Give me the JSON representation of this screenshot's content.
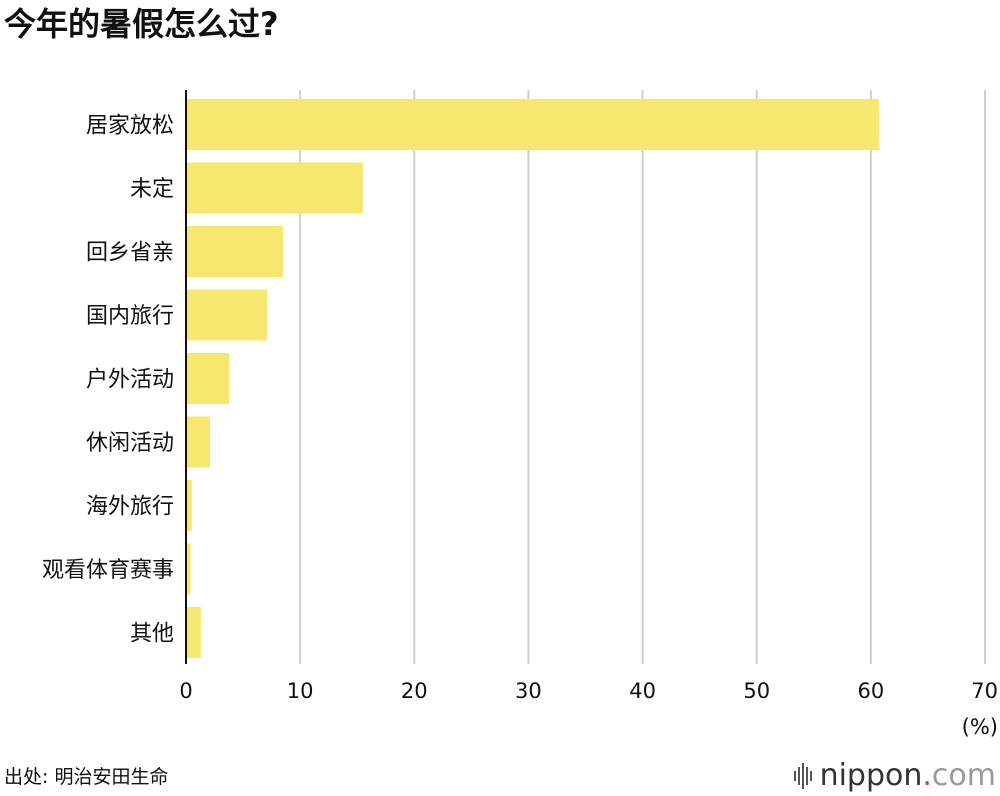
{
  "chart_data": {
    "type": "bar",
    "orientation": "horizontal",
    "title": "今年的暑假怎么过?",
    "categories": [
      "居家放松",
      "未定",
      "回乡省亲",
      "国内旅行",
      "户外活动",
      "休闲活动",
      "海外旅行",
      "观看体育赛事",
      "其他"
    ],
    "values": [
      60.7,
      15.5,
      8.5,
      7.1,
      3.8,
      2.1,
      0.5,
      0.4,
      1.3
    ],
    "xlim": [
      0,
      70
    ],
    "xticks": [
      "0",
      "10",
      "20",
      "30",
      "40",
      "50",
      "60",
      "70"
    ],
    "xunit": "(%)",
    "grid": true,
    "bar_color": "#f6e76e"
  },
  "footer": {
    "source": "出处: 明治安田生命",
    "logo": {
      "name": "nippon",
      "dot": ".",
      "tld": "com"
    }
  },
  "colors": {
    "bar": "#f6e76e",
    "grid": "#cfcfcf",
    "axis": "#111111",
    "logo_dot": "#e83828"
  }
}
